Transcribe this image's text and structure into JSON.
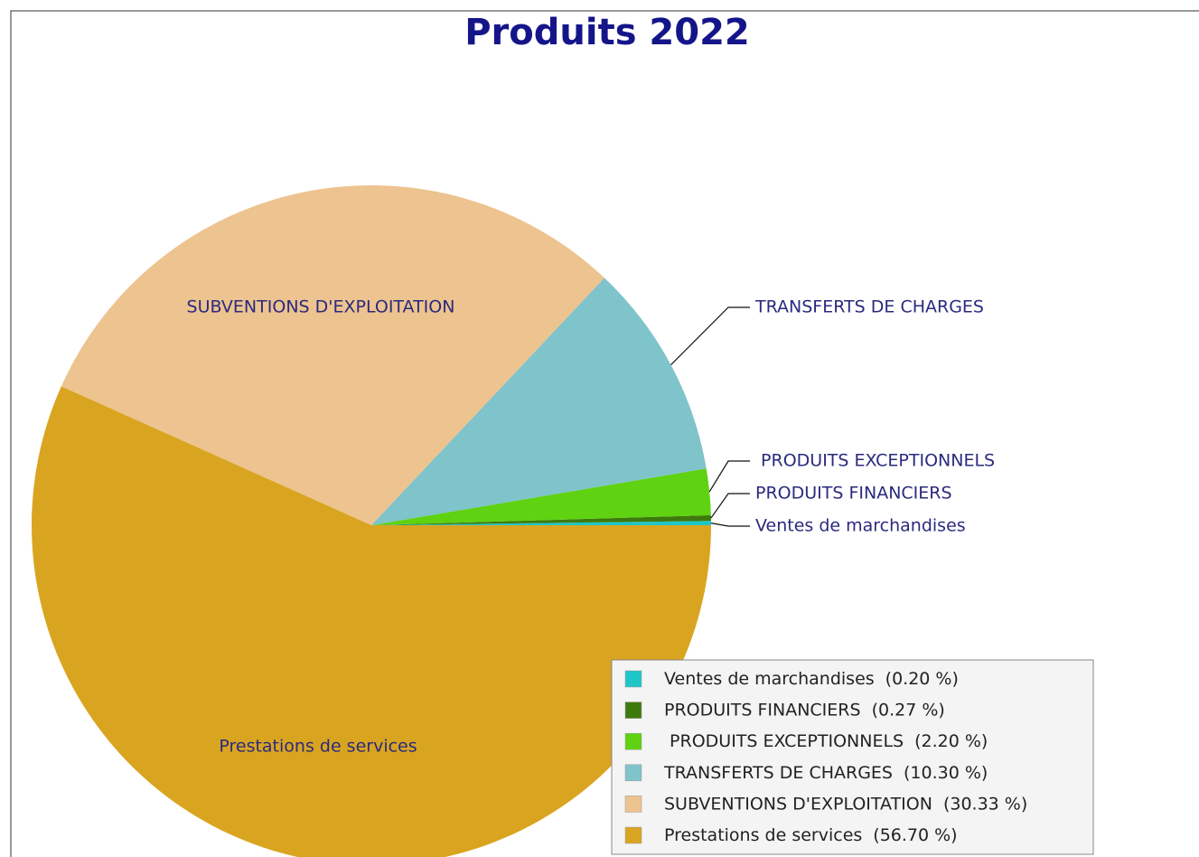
{
  "chart_data": {
    "type": "pie",
    "title": "Produits 2022",
    "categories": [
      "Ventes de marchandises",
      "PRODUITS FINANCIERS",
      " PRODUITS EXCEPTIONNELS",
      "TRANSFERTS DE CHARGES",
      "SUBVENTIONS D'EXPLOITATION",
      "Prestations de services"
    ],
    "values": [
      0.2,
      0.27,
      2.2,
      10.3,
      30.33,
      56.7
    ],
    "value_labels": [
      "(0.20 %)",
      "(0.27 %)",
      "(2.20 %)",
      "(10.30 %)",
      "(30.33 %)",
      "(56.70 %)"
    ],
    "colors": [
      "#1fc6c8",
      "#3d7a0c",
      "#5fd212",
      "#7fc3cb",
      "#edc38f",
      "#d9a520"
    ],
    "legend": "lower right"
  }
}
